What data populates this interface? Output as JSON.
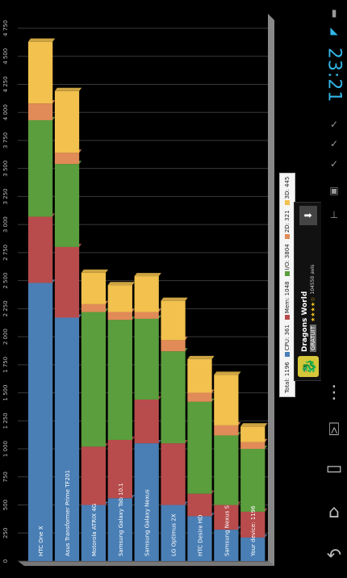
{
  "chart_data": {
    "type": "bar",
    "stacked": true,
    "orientation": "vertical",
    "ylim": [
      0,
      4750
    ],
    "yticks": [
      "0",
      "250",
      "500",
      "750",
      "1 000",
      "1 250",
      "1 500",
      "1 750",
      "2 000",
      "2 250",
      "2 500",
      "2 750",
      "3 000",
      "3 250",
      "3 500",
      "3 750",
      "4 000",
      "4 250",
      "4 500",
      "4 750"
    ],
    "categories": [
      "HTC One X",
      "Asus Transformer Prime TF201",
      "Motorola ATRIX 4G",
      "Samsung Galaxy Tab 10.1",
      "Samsung Galaxy Nexus",
      "LG Optimus 2X",
      "HTC Desire HD",
      "Samsung Nexus S",
      "Your device: 1196"
    ],
    "series": [
      {
        "name": "CPU",
        "color": "#4a7fb5",
        "values": [
          2480,
          2170,
          500,
          560,
          1050,
          500,
          400,
          280,
          210
        ]
      },
      {
        "name": "Mem",
        "color": "#b84c4c",
        "values": [
          590,
          630,
          520,
          520,
          390,
          550,
          200,
          220,
          230
        ]
      },
      {
        "name": "I/O",
        "color": "#5a9e3d",
        "values": [
          860,
          740,
          1200,
          1070,
          720,
          820,
          820,
          620,
          560
        ]
      },
      {
        "name": "2D",
        "color": "#e18b58",
        "values": [
          150,
          100,
          70,
          70,
          60,
          100,
          80,
          90,
          60
        ]
      },
      {
        "name": "3D",
        "color": "#f2c14e",
        "values": [
          550,
          550,
          280,
          240,
          320,
          350,
          300,
          450,
          140
        ]
      }
    ],
    "legend": {
      "total": "Total: 1196",
      "items": [
        {
          "label": "CPU: 361",
          "color": "#4a7fb5"
        },
        {
          "label": "Mem: 1048",
          "color": "#b84c4c"
        },
        {
          "label": "I/O: 3804",
          "color": "#5a9e3d"
        },
        {
          "label": "2D: 321",
          "color": "#e18b58"
        },
        {
          "label": "3D: 445",
          "color": "#f2c14e"
        }
      ]
    },
    "grid": true
  },
  "status_bar": {
    "time": "23:21"
  },
  "ad": {
    "title": "Dragons World",
    "badge": "GRATUIT",
    "stars": "★★★★☆",
    "reviews": "104550 avis",
    "download_icon": "download-icon",
    "app_icon": "dragon-icon"
  },
  "nav": {
    "back_icon": "back-icon",
    "home_icon": "home-icon",
    "recents_icon": "recents-icon",
    "menu_icon": "menu-icon"
  }
}
